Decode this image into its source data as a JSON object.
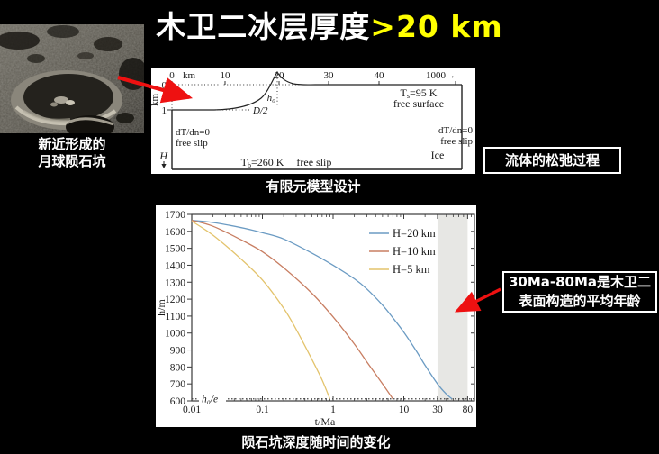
{
  "title": {
    "main": "木卫二冰层厚度",
    "highlight": ">20 km"
  },
  "moon": {
    "caption_line1": "新近形成的",
    "caption_line2": "月球陨石坑"
  },
  "fem": {
    "caption": "有限元模型设计",
    "top_ticks": [
      "0",
      "10",
      "20",
      "30",
      "40",
      "1000"
    ],
    "top_unit": "km",
    "axis_break_arrow": "→",
    "y_ticks": [
      "0",
      "1"
    ],
    "y_axis_label": "km",
    "peak_label": "h₀",
    "half_diameter_label": "D/2",
    "surface_temp": {
      "sym": "T",
      "sub": "s",
      "rest": "=95 K"
    },
    "free_surface": "free surface",
    "left_bc1": "dT/dn=0",
    "left_bc2": "free slip",
    "right_bc1": "dT/dn=0",
    "right_bc2": "free slip",
    "bottom_temp": {
      "sym": "T",
      "sub": "b",
      "rest": "=260 K"
    },
    "bottom_bc": "free slip",
    "ice_label": "Ice",
    "depth_label": "H"
  },
  "annotations": {
    "box1": "流体的松弛过程",
    "box2_line1": "30Ma-80Ma是木卫二",
    "box2_line2": "表面构造的平均年龄"
  },
  "chart_caption": "陨石坑深度随时间的变化",
  "colors": {
    "accent": "#ffff00",
    "arrow_red": "#ee1111",
    "shaded_band": "#e7e7e4",
    "spine": "#3a3a3a"
  },
  "chart_data": {
    "type": "line",
    "x_scale": "log",
    "xlabel": {
      "var": "t",
      "rest": "/Ma"
    },
    "ylabel": {
      "var": "h",
      "rest": "/m"
    },
    "xlim": [
      0.01,
      100
    ],
    "ylim": [
      600,
      1700
    ],
    "x_major_ticks": [
      0.01,
      0.1,
      1,
      10,
      30,
      80
    ],
    "x_tick_labels": [
      "0.01",
      "0.1",
      "1",
      "10",
      "30",
      "80"
    ],
    "y_ticks": [
      600,
      700,
      800,
      900,
      1000,
      1100,
      1200,
      1300,
      1400,
      1500,
      1600,
      1700
    ],
    "grid": false,
    "legend_position": "upper right",
    "shaded_region": {
      "from": 30,
      "to": 80,
      "note": "30-80 Ma average surface age band"
    },
    "reference_line": {
      "value": 612,
      "label": "h₀/e"
    },
    "series": [
      {
        "name_var": "H",
        "name_rest": "=20 km",
        "color": "#6b9bc3",
        "points": [
          [
            0.01,
            1665
          ],
          [
            0.02,
            1652
          ],
          [
            0.05,
            1622
          ],
          [
            0.1,
            1592
          ],
          [
            0.2,
            1555
          ],
          [
            0.5,
            1472
          ],
          [
            1,
            1400
          ],
          [
            2,
            1320
          ],
          [
            3,
            1260
          ],
          [
            5,
            1165
          ],
          [
            7,
            1090
          ],
          [
            10,
            1005
          ],
          [
            15,
            895
          ],
          [
            20,
            810
          ],
          [
            30,
            700
          ],
          [
            40,
            640
          ],
          [
            48,
            612
          ]
        ]
      },
      {
        "name_var": "H",
        "name_rest": "=10 km",
        "color": "#c87e62",
        "points": [
          [
            0.01,
            1665
          ],
          [
            0.02,
            1630
          ],
          [
            0.05,
            1550
          ],
          [
            0.1,
            1480
          ],
          [
            0.2,
            1385
          ],
          [
            0.5,
            1235
          ],
          [
            1,
            1095
          ],
          [
            2,
            935
          ],
          [
            3,
            830
          ],
          [
            5,
            700
          ],
          [
            7,
            612
          ]
        ]
      },
      {
        "name_var": "H",
        "name_rest": "=5 km",
        "color": "#e3c36c",
        "points": [
          [
            0.01,
            1660
          ],
          [
            0.02,
            1577
          ],
          [
            0.05,
            1436
          ],
          [
            0.1,
            1313
          ],
          [
            0.2,
            1146
          ],
          [
            0.3,
            1022
          ],
          [
            0.5,
            846
          ],
          [
            0.7,
            723
          ],
          [
            0.9,
            612
          ]
        ]
      }
    ]
  }
}
